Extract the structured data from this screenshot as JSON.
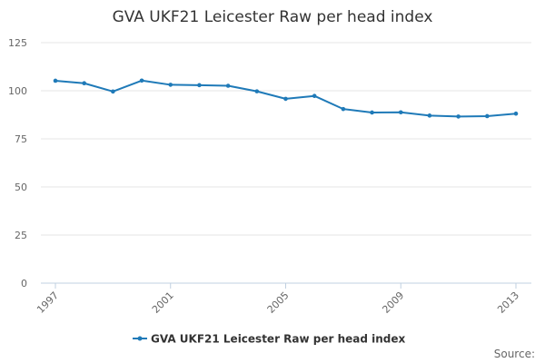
{
  "chart_data": {
    "type": "line",
    "title": "GVA UKF21 Leicester Raw per head index",
    "x": [
      1997,
      1998,
      1999,
      2000,
      2001,
      2002,
      2003,
      2004,
      2005,
      2006,
      2007,
      2008,
      2009,
      2010,
      2011,
      2012,
      2013
    ],
    "series": [
      {
        "name": "GVA UKF21 Leicester Raw per head index",
        "values": [
          105.2,
          103.9,
          99.6,
          105.3,
          103.1,
          102.9,
          102.6,
          99.7,
          95.8,
          97.3,
          90.5,
          88.7,
          88.8,
          87.1,
          86.6,
          86.8,
          88.1
        ],
        "color": "#1f7ab8"
      }
    ],
    "x_tick_labels": [
      "1997",
      "2001",
      "2005",
      "2009",
      "2013"
    ],
    "y_tick_labels": [
      "0",
      "25",
      "50",
      "75",
      "100",
      "125"
    ],
    "ylim": [
      0,
      125
    ],
    "xlim": [
      1997,
      2013
    ],
    "xlabel": "",
    "ylabel": "",
    "grid": true,
    "legend_position": "bottom"
  },
  "source_label": "Source:"
}
